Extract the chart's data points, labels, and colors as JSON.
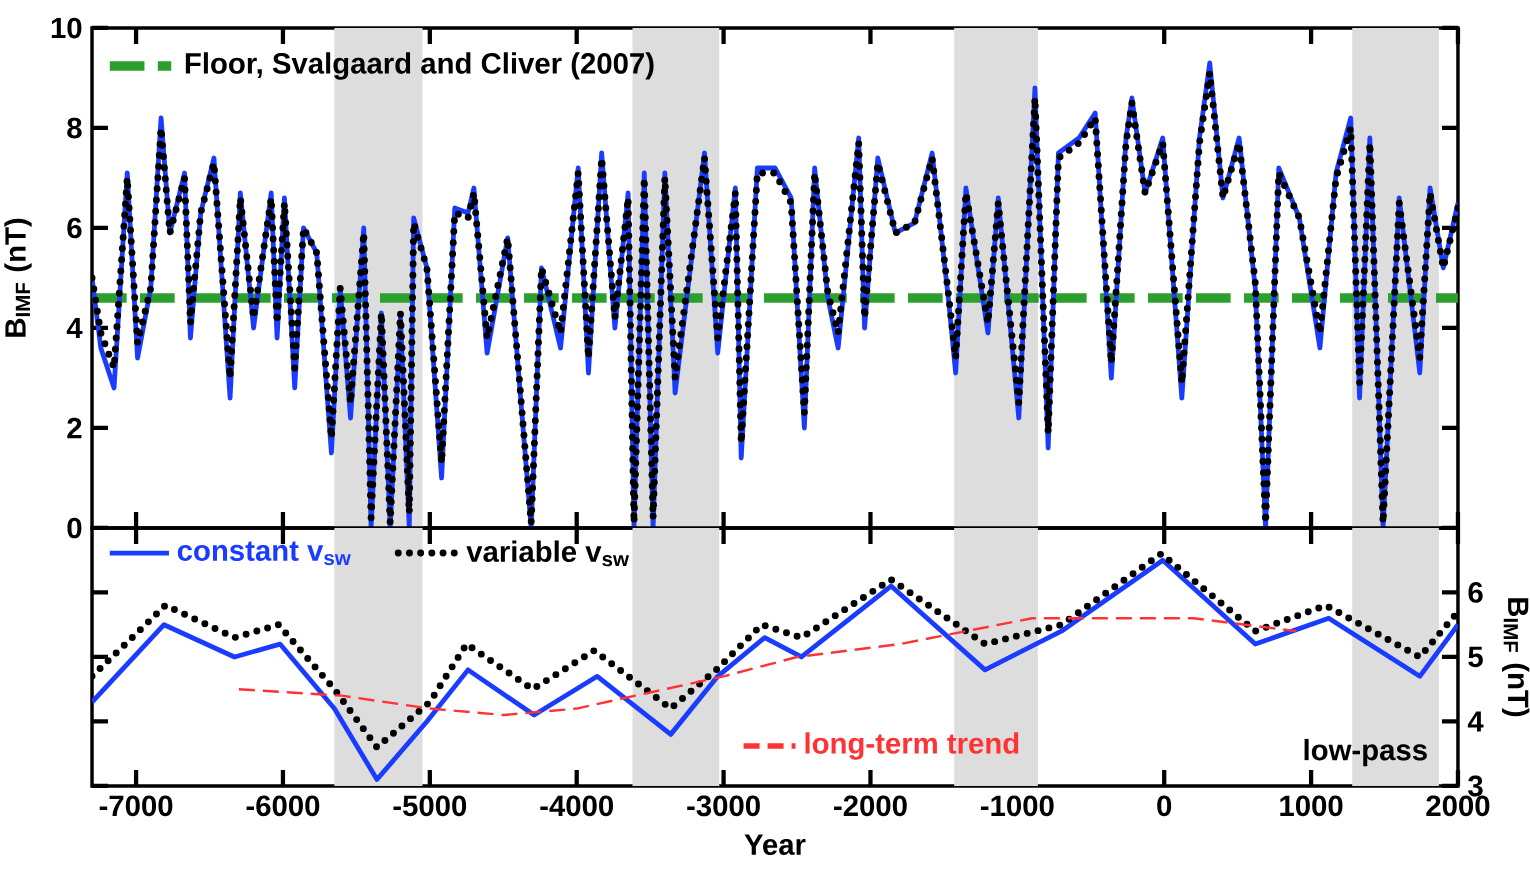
{
  "chart_data": [
    {
      "type": "line",
      "ylabel": "B$_{IMF}$ (nT)",
      "xlim": [
        -7300,
        2000
      ],
      "xticks": [
        -7000,
        -6000,
        -5000,
        -4000,
        -3000,
        -2000,
        -1000,
        0,
        1000,
        2000
      ],
      "ylim": [
        0,
        10
      ],
      "yticks": [
        0,
        2,
        4,
        6,
        8,
        10
      ],
      "tick_labels": "y",
      "x": [
        -7300,
        -7240,
        -7150,
        -7060,
        -6990,
        -6900,
        -6830,
        -6770,
        -6670,
        -6630,
        -6560,
        -6470,
        -6360,
        -6290,
        -6200,
        -6080,
        -6040,
        -5990,
        -5920,
        -5860,
        -5770,
        -5670,
        -5610,
        -5540,
        -5450,
        -5400,
        -5330,
        -5270,
        -5200,
        -5140,
        -5110,
        -5020,
        -4920,
        -4830,
        -4740,
        -4700,
        -4610,
        -4470,
        -4310,
        -4240,
        -4110,
        -3990,
        -3920,
        -3830,
        -3740,
        -3650,
        -3610,
        -3540,
        -3480,
        -3400,
        -3330,
        -3130,
        -3040,
        -2920,
        -2880,
        -2770,
        -2650,
        -2540,
        -2450,
        -2380,
        -2290,
        -2220,
        -2080,
        -2040,
        -1950,
        -1830,
        -1700,
        -1580,
        -1470,
        -1420,
        -1350,
        -1200,
        -1130,
        -990,
        -880,
        -790,
        -720,
        -580,
        -470,
        -360,
        -260,
        -220,
        -130,
        -10,
        120,
        240,
        310,
        400,
        510,
        620,
        690,
        780,
        920,
        1060,
        1170,
        1270,
        1330,
        1400,
        1490,
        1600,
        1740,
        1810,
        1900,
        2000
      ],
      "series": [
        {
          "color": "#1a3cff",
          "line_style": "solid",
          "values": [
            5.0,
            3.6,
            2.8,
            7.1,
            3.4,
            4.8,
            8.2,
            5.9,
            7.1,
            3.8,
            6.3,
            7.4,
            2.6,
            6.7,
            4.0,
            6.7,
            3.8,
            6.6,
            2.8,
            6.0,
            5.5,
            1.5,
            4.8,
            2.2,
            6.0,
            0,
            4.3,
            0,
            4.2,
            0,
            6.2,
            5.2,
            1.0,
            6.4,
            6.3,
            6.8,
            3.5,
            5.8,
            0,
            5.2,
            3.6,
            7.2,
            3.1,
            7.5,
            4.0,
            6.7,
            0,
            7.1,
            0,
            7.1,
            2.7,
            7.5,
            3.5,
            6.8,
            1.4,
            7.2,
            7.2,
            6.6,
            2.0,
            7.2,
            4.6,
            3.6,
            7.8,
            4.0,
            7.4,
            5.9,
            6.1,
            7.5,
            4.6,
            3.1,
            6.8,
            3.9,
            6.6,
            2.2,
            8.8,
            1.6,
            7.5,
            7.8,
            8.3,
            3.0,
            7.8,
            8.6,
            6.7,
            7.8,
            2.6,
            7.8,
            9.3,
            6.6,
            7.8,
            4.8,
            0,
            7.2,
            6.2,
            3.6,
            7.1,
            8.2,
            2.6,
            7.8,
            0,
            6.6,
            3.1,
            6.8,
            5.2,
            6.5
          ]
        },
        {
          "color": "#000000",
          "line_style": "dotted",
          "values": [
            5.0,
            3.9,
            3.2,
            7.0,
            3.7,
            4.8,
            8.0,
            5.9,
            7.0,
            4.1,
            6.3,
            7.3,
            3.0,
            6.6,
            4.2,
            6.6,
            4.1,
            6.5,
            3.2,
            6.0,
            5.5,
            1.8,
            4.8,
            2.5,
            5.9,
            0.2,
            4.3,
            0.1,
            4.3,
            0.3,
            6.1,
            5.2,
            1.3,
            6.3,
            6.2,
            6.7,
            3.8,
            5.8,
            0.1,
            5.2,
            3.9,
            7.1,
            3.4,
            7.4,
            4.2,
            6.6,
            0.1,
            7.0,
            0.2,
            7.0,
            3.0,
            7.4,
            3.8,
            6.7,
            1.7,
            7.1,
            7.1,
            6.5,
            2.3,
            7.1,
            4.7,
            3.9,
            7.7,
            4.2,
            7.3,
            5.9,
            6.1,
            7.4,
            4.7,
            3.4,
            6.7,
            4.1,
            6.5,
            2.5,
            8.6,
            1.9,
            7.4,
            7.7,
            8.2,
            3.3,
            7.7,
            8.5,
            6.7,
            7.7,
            2.9,
            7.7,
            9.1,
            6.6,
            7.7,
            4.9,
            0.1,
            7.1,
            6.2,
            3.9,
            7.0,
            8.0,
            2.9,
            7.7,
            0.1,
            6.5,
            3.4,
            6.7,
            5.2,
            6.4
          ]
        }
      ],
      "ref_lines": [
        {
          "axis": "y",
          "value": 4.6,
          "label": "Floor, Svalgaard and Cliver (2007)",
          "color": "#2ca02c",
          "line_style": "dashed"
        }
      ],
      "bands": [
        {
          "axis": "x",
          "from": -5650,
          "to": -5050,
          "color": "#dddddd"
        },
        {
          "axis": "x",
          "from": -3620,
          "to": -3030,
          "color": "#dddddd"
        },
        {
          "axis": "x",
          "from": -1430,
          "to": -860,
          "color": "#dddddd"
        },
        {
          "axis": "x",
          "from": 1280,
          "to": 1870,
          "color": "#dddddd"
        }
      ]
    },
    {
      "type": "line",
      "xlabel": "Year",
      "y2label": "B$_{IMF}$ (nT)",
      "xlim": [
        -7300,
        2000
      ],
      "xticks": [
        -7000,
        -6000,
        -5000,
        -4000,
        -3000,
        -2000,
        -1000,
        0,
        1000,
        2000
      ],
      "y2lim": [
        3,
        7
      ],
      "y2ticks": [
        3,
        4,
        5,
        6
      ],
      "legend": "top left",
      "annotations": [
        "low-pass"
      ],
      "series": [
        {
          "name": "constant v$_{sw}$",
          "axis": "y2",
          "color": "#1a3cff",
          "line_style": "solid",
          "x": [
            -7300,
            -6810,
            -6330,
            -6020,
            -5650,
            -5360,
            -5020,
            -4740,
            -4290,
            -3860,
            -3360,
            -3040,
            -2720,
            -2470,
            -1860,
            -1220,
            -700,
            -10,
            620,
            1120,
            1740,
            2000
          ],
          "values": [
            4.3,
            5.5,
            5.0,
            5.2,
            4.2,
            3.1,
            4.0,
            4.8,
            4.1,
            4.7,
            3.8,
            4.7,
            5.3,
            5.0,
            6.1,
            4.8,
            5.4,
            6.5,
            5.2,
            5.6,
            4.7,
            5.5
          ]
        },
        {
          "name": "variable v$_{sw}$",
          "axis": "y2",
          "color": "#000000",
          "line_style": "dotted",
          "x": [
            -7300,
            -6800,
            -6330,
            -6030,
            -5650,
            -5360,
            -5000,
            -4750,
            -4300,
            -3880,
            -3360,
            -3050,
            -2740,
            -2470,
            -1860,
            -1220,
            -700,
            -20,
            620,
            1100,
            1740,
            2000
          ],
          "values": [
            4.7,
            5.8,
            5.3,
            5.5,
            4.5,
            3.6,
            4.3,
            5.2,
            4.5,
            5.1,
            4.2,
            4.8,
            5.5,
            5.3,
            6.2,
            5.2,
            5.5,
            6.6,
            5.4,
            5.8,
            5.0,
            5.7
          ]
        },
        {
          "name": "long-term trend",
          "axis": "y2",
          "color": "#ff3333",
          "line_style": "dashed",
          "x": [
            -6300,
            -5600,
            -5000,
            -4500,
            -4000,
            -3600,
            -3000,
            -2500,
            -1800,
            -900,
            200,
            900
          ],
          "values": [
            4.5,
            4.4,
            4.2,
            4.1,
            4.2,
            4.4,
            4.7,
            5.0,
            5.2,
            5.6,
            5.6,
            5.4
          ]
        }
      ],
      "bands": [
        {
          "axis": "x",
          "from": -5650,
          "to": -5050,
          "color": "#dddddd"
        },
        {
          "axis": "x",
          "from": -3620,
          "to": -3030,
          "color": "#dddddd"
        },
        {
          "axis": "x",
          "from": -1430,
          "to": -860,
          "color": "#dddddd"
        },
        {
          "axis": "x",
          "from": 1280,
          "to": 1870,
          "color": "#dddddd"
        }
      ]
    }
  ]
}
